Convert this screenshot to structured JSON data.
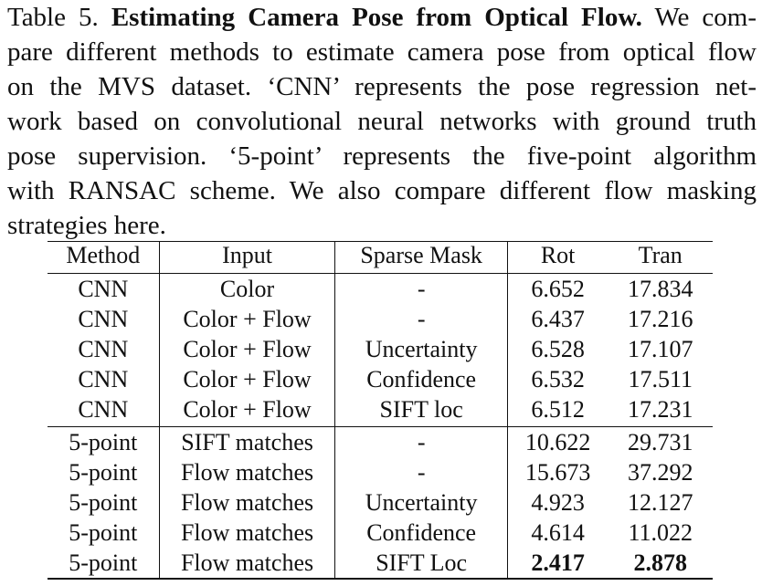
{
  "caption": {
    "lines": [
      {
        "label": "Table 5.",
        "title": "Estimating Camera Pose from Optical Flow.",
        "rest": "We com-"
      },
      {
        "text": "pare different methods to estimate camera pose from optical flow"
      },
      {
        "text": "on the MVS dataset.  ‘CNN’ represents the pose regression net-"
      },
      {
        "text": "work based on convolutional neural networks with ground truth"
      },
      {
        "text": "pose supervision.  ‘5-point’ represents the five-point algorithm"
      },
      {
        "text": "with RANSAC scheme. We also compare different flow masking"
      },
      {
        "text": "strategies here."
      }
    ]
  },
  "table": {
    "headers": {
      "method": "Method",
      "input": "Input",
      "mask": "Sparse Mask",
      "rot": "Rot",
      "tran": "Tran"
    },
    "rows": [
      {
        "method": "CNN",
        "input": "Color",
        "mask": "-",
        "rot": "6.652",
        "tran": "17.834"
      },
      {
        "method": "CNN",
        "input": "Color + Flow",
        "mask": "-",
        "rot": "6.437",
        "tran": "17.216"
      },
      {
        "method": "CNN",
        "input": "Color + Flow",
        "mask": "Uncertainty",
        "rot": "6.528",
        "tran": "17.107"
      },
      {
        "method": "CNN",
        "input": "Color + Flow",
        "mask": "Confidence",
        "rot": "6.532",
        "tran": "17.511"
      },
      {
        "method": "CNN",
        "input": "Color + Flow",
        "mask": "SIFT loc",
        "rot": "6.512",
        "tran": "17.231"
      },
      {
        "method": "5-point",
        "input": "SIFT matches",
        "mask": "-",
        "rot": "10.622",
        "tran": "29.731"
      },
      {
        "method": "5-point",
        "input": "Flow matches",
        "mask": "-",
        "rot": "15.673",
        "tran": "37.292"
      },
      {
        "method": "5-point",
        "input": "Flow matches",
        "mask": "Uncertainty",
        "rot": "4.923",
        "tran": "12.127"
      },
      {
        "method": "5-point",
        "input": "Flow matches",
        "mask": "Confidence",
        "rot": "4.614",
        "tran": "11.022"
      },
      {
        "method": "5-point",
        "input": "Flow matches",
        "mask": "SIFT Loc",
        "rot": "2.417",
        "tran": "2.878"
      }
    ]
  }
}
